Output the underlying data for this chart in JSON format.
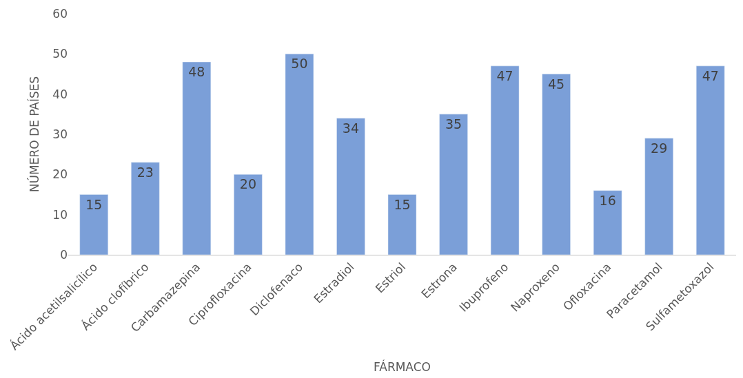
{
  "chart_data": {
    "type": "bar",
    "xlabel": "FÁRMACO",
    "ylabel": "NÚMERO DE PAÍSES",
    "categories": [
      "Ácido acetilsalicílico",
      "Ácido clofíbrico",
      "Carbamazepina",
      "Ciprofloxacina",
      "Diclofenaco",
      "Estradiol",
      "Estriol",
      "Estrona",
      "Ibuprofeno",
      "Naproxeno",
      "Ofloxacina",
      "Paracetamol",
      "Sulfametoxazol"
    ],
    "values": [
      15,
      23,
      48,
      20,
      50,
      34,
      15,
      35,
      47,
      45,
      16,
      29,
      47
    ],
    "color": "#7b9fd8",
    "ylim": [
      0,
      60
    ],
    "yticks": [
      0,
      10,
      20,
      30,
      40,
      50,
      60
    ],
    "grid": false,
    "data_labels": true
  }
}
